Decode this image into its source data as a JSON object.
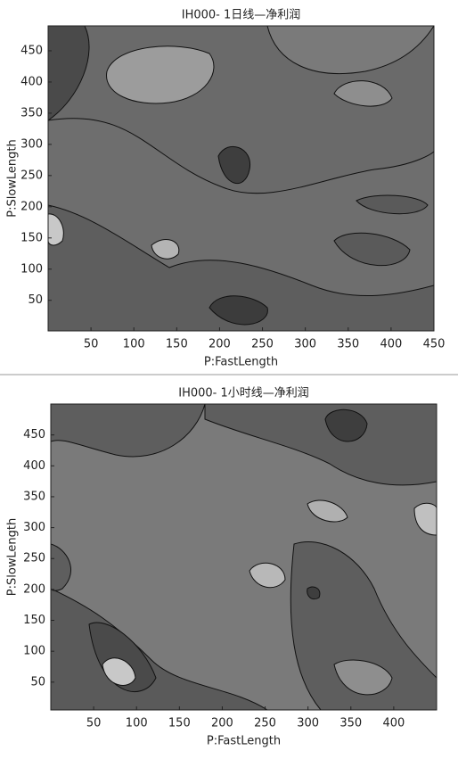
{
  "chart_data": [
    {
      "type": "contour",
      "title": "IH000- 1日线—净利润",
      "x_label": "P:FastLength",
      "y_label": "P:SlowLength",
      "xlim": [
        0,
        450
      ],
      "ylim": [
        1,
        490
      ],
      "xticks": [
        50,
        100,
        150,
        200,
        250,
        300,
        350,
        400,
        450
      ],
      "yticks": [
        50,
        100,
        150,
        200,
        250,
        300,
        350,
        400,
        450
      ]
    },
    {
      "type": "contour",
      "title": "IH000- 1小时线—净利润",
      "x_label": "P:FastLength",
      "y_label": "P:SlowLength",
      "xlim": [
        0,
        450
      ],
      "ylim": [
        5,
        500
      ],
      "xticks": [
        50,
        100,
        150,
        200,
        250,
        300,
        350,
        400
      ],
      "yticks": [
        50,
        100,
        150,
        200,
        250,
        300,
        350,
        400,
        450
      ]
    }
  ]
}
